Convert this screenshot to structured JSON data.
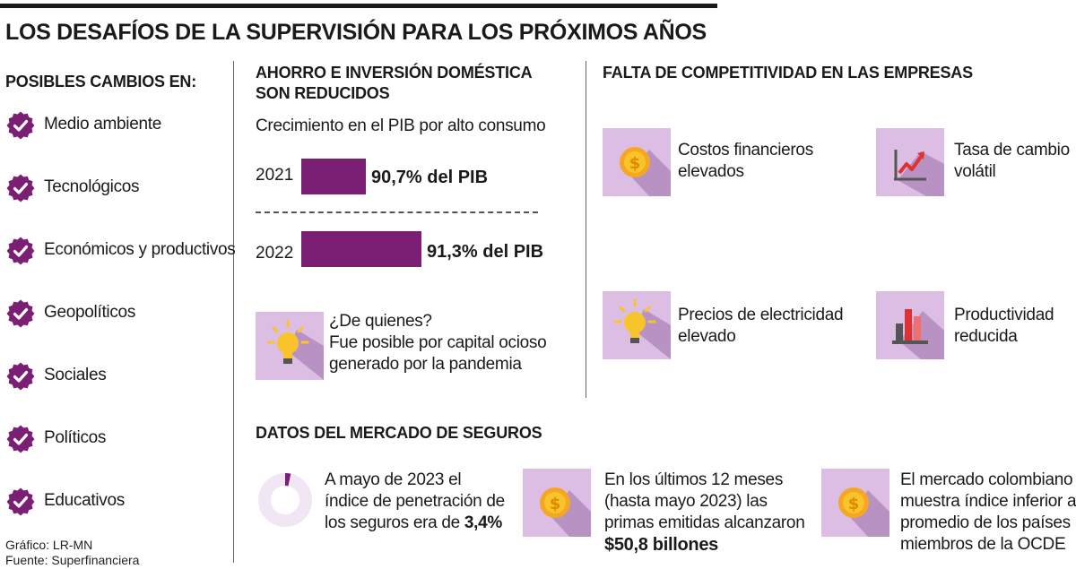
{
  "title": "LOS DESAFÍOS DE LA SUPERVISIÓN PARA LOS PRÓXIMOS AÑOS",
  "colors": {
    "accent": "#7b1f74",
    "icon_bg": "#dcbde3",
    "icon_shadow": "#b992c4",
    "coin": "#f5a623",
    "bulb": "#f7c52b"
  },
  "posibles": {
    "heading": "POSIBLES CAMBIOS EN:",
    "items": [
      "Medio ambiente",
      "Tecnológicos",
      "Económicos y productivos",
      "Geopolíticos",
      "Sociales",
      "Políticos",
      "Educativos"
    ]
  },
  "ahorro": {
    "heading_line1": "AHORRO E INVERSIÓN DOMÉSTICA",
    "heading_line2": "SON REDUCIDOS",
    "subtitle": "Crecimiento en el PIB por alto consumo",
    "rows": [
      {
        "year": "2021",
        "value": 90.7,
        "label": "90,7% del PIB"
      },
      {
        "year": "2022",
        "value": 91.3,
        "label": "91,3% del PIB"
      }
    ],
    "quien_title": "¿De quienes?",
    "quien_line1": "Fue posible por capital ocioso",
    "quien_line2": "generado por la pandemia",
    "quien_icon": "lightbulb-icon"
  },
  "falta": {
    "heading": "FALTA DE COMPETITIVIDAD EN LAS EMPRESAS",
    "items": [
      {
        "icon": "coin-icon",
        "line1": "Costos financieros",
        "line2": "elevados"
      },
      {
        "icon": "growth-chart-icon",
        "line1": "Tasa de cambio",
        "line2": "volátil"
      },
      {
        "icon": "lightbulb-icon",
        "line1": "Precios de electricidad",
        "line2": "elevado"
      },
      {
        "icon": "bar-chart-icon",
        "line1": "Productividad",
        "line2": "reducida"
      }
    ]
  },
  "seguros": {
    "heading": "DATOS DEL MERCADO DE SEGUROS",
    "penetracion": {
      "value": 3.4,
      "line1": "A mayo de 2023 el",
      "line2": "índice de penetración de",
      "line3_prefix": "los seguros era de ",
      "line3_bold": "3,4%"
    },
    "primas": {
      "line1": "En los últimos 12 meses",
      "line2": "(hasta mayo 2023) las",
      "line3": "primas emitidas alcanzaron",
      "bold": "$50,8 billones"
    },
    "ocde": {
      "line1": "El mercado colombiano",
      "line2": "muestra índice inferior al",
      "line3": "promedio de los países",
      "line4": "miembros de la OCDE"
    }
  },
  "credits": {
    "grafico": "Gráfico: LR-MN",
    "fuente": "Fuente: Superfinanciera"
  }
}
